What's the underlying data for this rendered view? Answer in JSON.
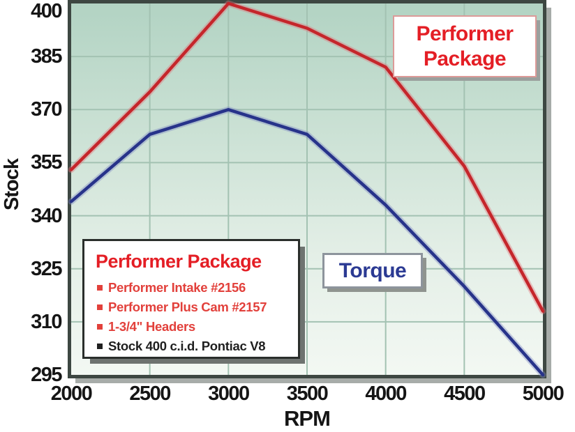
{
  "chart_data": {
    "type": "line",
    "title": "",
    "xlabel": "RPM",
    "ylabel": "Stock",
    "xlim": [
      2000,
      5000
    ],
    "ylim": [
      295,
      400
    ],
    "x": [
      2000,
      2500,
      3000,
      3500,
      4000,
      4500,
      5000
    ],
    "xticks": [
      2000,
      2500,
      3000,
      3500,
      4000,
      4500,
      5000
    ],
    "yticks": [
      295,
      310,
      325,
      340,
      355,
      370,
      385,
      400
    ],
    "grid": true,
    "legend_position": "in-plot callout boxes",
    "series": [
      {
        "name": "Performer Package",
        "color": "#c5262b",
        "halo": "#e0767c",
        "values": [
          353,
          375,
          400,
          393,
          382,
          354,
          313
        ]
      },
      {
        "name": "Torque (Stock)",
        "color": "#27338a",
        "halo": "#7c86c4",
        "values": [
          344,
          363,
          370,
          363,
          343,
          320,
          295
        ]
      }
    ]
  },
  "annotations": {
    "performer_callout": {
      "line1": "Performer",
      "line2": "Package",
      "color": "#e41e25"
    },
    "torque_callout": {
      "label": "Torque",
      "color": "#2b3a93"
    }
  },
  "info_box": {
    "title": "Performer Package",
    "title_color": "#e41e25",
    "items": [
      {
        "text": "Performer Intake #2156",
        "color": "#e2403b"
      },
      {
        "text": "Performer Plus Cam #2157",
        "color": "#e2403b"
      },
      {
        "text": "1-3/4\" Headers",
        "color": "#e2403b"
      },
      {
        "text": "Stock 400 c.i.d. Pontiac V8",
        "color": "#1f1f1f"
      }
    ]
  },
  "colors": {
    "plot_bg_top": "#b2d3c3",
    "plot_bg_bottom": "#f3f8f3",
    "gridline": "#a3c2b2",
    "plot_border": "#3d4742",
    "tick_text": "#151515"
  }
}
